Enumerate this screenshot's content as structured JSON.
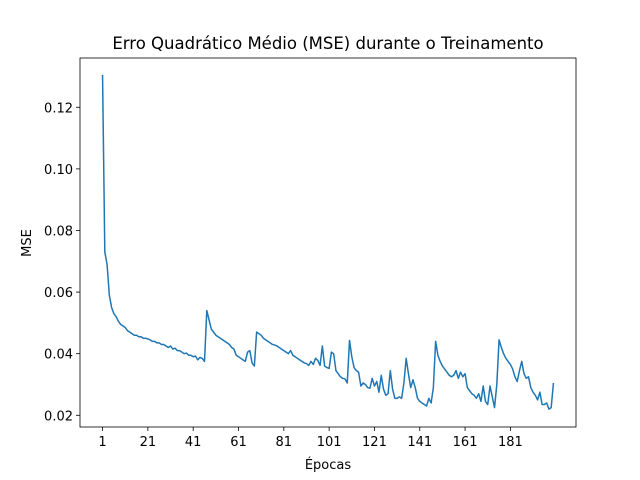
{
  "chart_data": {
    "type": "line",
    "title": "Erro Quadrático Médio (MSE) durante o Treinamento",
    "x_label": "Épocas",
    "y_label": "MSE",
    "x": [
      1,
      2,
      3,
      4,
      5,
      6,
      7,
      8,
      9,
      10,
      11,
      12,
      13,
      14,
      15,
      16,
      17,
      18,
      19,
      20,
      21,
      22,
      23,
      24,
      25,
      26,
      27,
      28,
      29,
      30,
      31,
      32,
      33,
      34,
      35,
      36,
      37,
      38,
      39,
      40,
      41,
      42,
      43,
      44,
      45,
      46,
      47,
      48,
      49,
      50,
      51,
      52,
      53,
      54,
      55,
      56,
      57,
      58,
      59,
      60,
      61,
      62,
      63,
      64,
      65,
      66,
      67,
      68,
      69,
      70,
      71,
      72,
      73,
      74,
      75,
      76,
      77,
      78,
      79,
      80,
      81,
      82,
      83,
      84,
      85,
      86,
      87,
      88,
      89,
      90,
      91,
      92,
      93,
      94,
      95,
      96,
      97,
      98,
      99,
      100,
      101,
      102,
      103,
      104,
      105,
      106,
      107,
      108,
      109,
      110,
      111,
      112,
      113,
      114,
      115,
      116,
      117,
      118,
      119,
      120,
      121,
      122,
      123,
      124,
      125,
      126,
      127,
      128,
      129,
      130,
      131,
      132,
      133,
      134,
      135,
      136,
      137,
      138,
      139,
      140,
      141,
      142,
      143,
      144,
      145,
      146,
      147,
      148,
      149,
      150,
      151,
      152,
      153,
      154,
      155,
      156,
      157,
      158,
      159,
      160,
      161,
      162,
      163,
      164,
      165,
      166,
      167,
      168,
      169,
      170,
      171,
      172,
      173,
      174,
      175,
      176,
      177,
      178,
      179,
      180,
      181,
      182,
      183,
      184,
      185,
      186,
      187,
      188,
      189,
      190,
      191,
      192,
      193,
      194,
      195,
      196,
      197,
      198,
      199,
      200
    ],
    "series": [
      {
        "color": "#1f77b4",
        "values": [
          0.1305,
          0.073,
          0.069,
          0.059,
          0.055,
          0.053,
          0.052,
          0.0505,
          0.0495,
          0.049,
          0.0485,
          0.0475,
          0.047,
          0.0465,
          0.046,
          0.046,
          0.0455,
          0.0455,
          0.045,
          0.045,
          0.0448,
          0.0445,
          0.044,
          0.044,
          0.0435,
          0.0435,
          0.043,
          0.043,
          0.0425,
          0.042,
          0.0425,
          0.0415,
          0.0418,
          0.041,
          0.041,
          0.0405,
          0.04,
          0.0402,
          0.0395,
          0.0395,
          0.039,
          0.0392,
          0.038,
          0.0388,
          0.0385,
          0.0375,
          0.054,
          0.051,
          0.048,
          0.047,
          0.046,
          0.0455,
          0.045,
          0.0445,
          0.044,
          0.0435,
          0.043,
          0.042,
          0.0415,
          0.0395,
          0.039,
          0.0385,
          0.038,
          0.0375,
          0.0405,
          0.041,
          0.037,
          0.036,
          0.047,
          0.0465,
          0.046,
          0.045,
          0.0445,
          0.044,
          0.0435,
          0.043,
          0.0428,
          0.0425,
          0.042,
          0.0415,
          0.041,
          0.0405,
          0.04,
          0.041,
          0.0395,
          0.039,
          0.0385,
          0.038,
          0.0375,
          0.037,
          0.0368,
          0.0362,
          0.0375,
          0.0365,
          0.0385,
          0.0378,
          0.0362,
          0.0425,
          0.036,
          0.0355,
          0.0352,
          0.0405,
          0.04,
          0.0345,
          0.0335,
          0.0325,
          0.032,
          0.0318,
          0.0305,
          0.0443,
          0.039,
          0.0355,
          0.0345,
          0.034,
          0.0295,
          0.0305,
          0.03,
          0.029,
          0.0288,
          0.032,
          0.0295,
          0.031,
          0.0275,
          0.033,
          0.0285,
          0.0265,
          0.027,
          0.0345,
          0.0285,
          0.0255,
          0.0255,
          0.026,
          0.0255,
          0.0305,
          0.0385,
          0.0335,
          0.029,
          0.0315,
          0.029,
          0.0255,
          0.0245,
          0.024,
          0.0235,
          0.023,
          0.0255,
          0.024,
          0.029,
          0.044,
          0.0395,
          0.0375,
          0.036,
          0.035,
          0.034,
          0.033,
          0.0325,
          0.033,
          0.0345,
          0.032,
          0.034,
          0.0325,
          0.0335,
          0.029,
          0.028,
          0.027,
          0.0265,
          0.0255,
          0.027,
          0.0245,
          0.0295,
          0.0245,
          0.0235,
          0.0295,
          0.026,
          0.0225,
          0.03,
          0.0445,
          0.042,
          0.04,
          0.0385,
          0.0375,
          0.0365,
          0.035,
          0.0325,
          0.031,
          0.0345,
          0.0375,
          0.0335,
          0.032,
          0.0325,
          0.029,
          0.0275,
          0.0265,
          0.025,
          0.0275,
          0.0235,
          0.0235,
          0.024,
          0.022,
          0.0225,
          0.0305
        ]
      }
    ],
    "xlim": [
      -8.95,
      209.95
    ],
    "xticks": [
      1,
      21,
      41,
      61,
      81,
      101,
      121,
      141,
      161,
      181
    ],
    "ylim": [
      0.0162,
      0.136
    ],
    "yticks": [
      0.02,
      0.04,
      0.06,
      0.08,
      {
        "value": 0.1,
        "label": "0.10"
      },
      0.12
    ],
    "grid": false
  }
}
